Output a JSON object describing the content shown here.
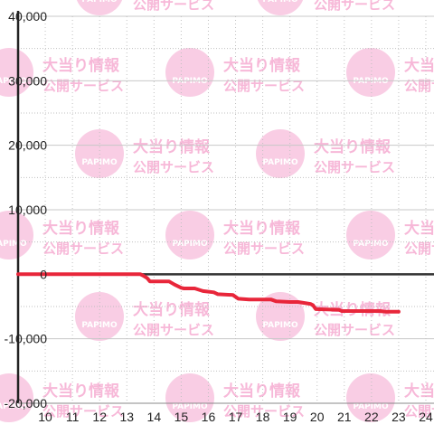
{
  "colors": {
    "series": "#e8263a",
    "axis": "#222222",
    "grid": "#c8c8c8",
    "minor_grid": "#c0c0c0",
    "zero_line": "#333333",
    "watermark": "#f7b8d8"
  },
  "watermark": {
    "brand": "PAPIMO",
    "line1": "大当り情報",
    "line2": "公開サービス"
  },
  "chart_data": {
    "type": "line",
    "title": "",
    "xlabel": "",
    "ylabel": "",
    "xlim": [
      9.0,
      24.3
    ],
    "ylim": [
      -20000,
      40000
    ],
    "x_ticks": [
      10,
      11,
      12,
      13,
      14,
      15,
      16,
      17,
      18,
      19,
      20,
      21,
      22,
      23,
      24
    ],
    "x_tick_labels": [
      "10",
      "11",
      "12",
      "13",
      "14",
      "15",
      "16",
      "17",
      "18",
      "19",
      "20",
      "21",
      "22",
      "23",
      "24"
    ],
    "y_ticks": [
      -20000,
      -10000,
      0,
      10000,
      20000,
      30000,
      40000
    ],
    "y_tick_labels": [
      "-20,000",
      "-10,000",
      "0",
      "10,000",
      "20,000",
      "30,000",
      "40,000"
    ],
    "grid": true,
    "legend": "none",
    "series": [
      {
        "x": [
          9.0,
          13.5,
          13.6,
          13.75,
          13.85,
          14.0,
          14.2,
          14.55,
          14.75,
          15.0,
          15.1,
          15.5,
          15.8,
          16.2,
          16.35,
          16.9,
          17.1,
          17.5,
          18.0,
          18.3,
          18.5,
          19.0,
          19.2,
          19.3,
          19.75,
          19.85,
          19.95,
          20.8,
          20.9,
          21.5,
          22.0,
          22.3,
          22.5,
          23.0
        ],
        "y": [
          0,
          0,
          -200,
          -600,
          -1100,
          -1100,
          -1100,
          -1100,
          -1600,
          -2100,
          -2200,
          -2200,
          -2600,
          -2800,
          -3100,
          -3200,
          -3800,
          -3900,
          -3900,
          -3900,
          -4200,
          -4300,
          -4300,
          -4300,
          -4600,
          -4800,
          -5400,
          -5500,
          -5700,
          -5700,
          -5700,
          -5700,
          -5800,
          -5800
        ]
      }
    ]
  }
}
